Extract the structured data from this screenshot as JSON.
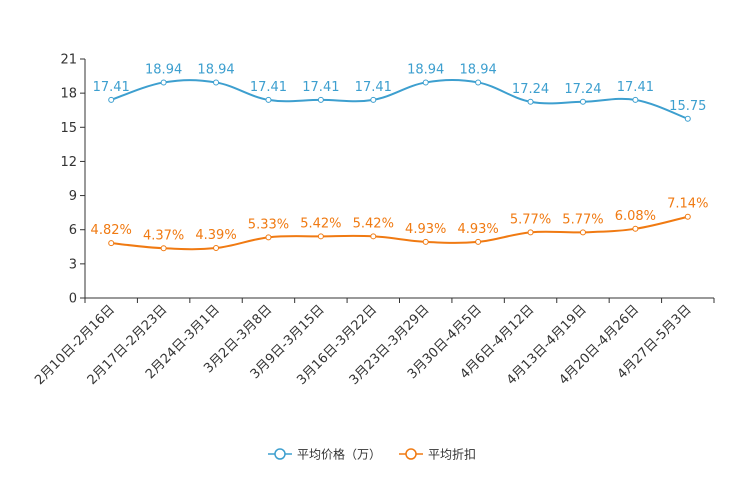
{
  "chart_data": {
    "type": "line",
    "title": "",
    "xlabel": "",
    "ylabel": "",
    "ylim": [
      0,
      21
    ],
    "yticks": [
      0,
      3,
      6,
      9,
      12,
      15,
      18,
      21
    ],
    "grid": false,
    "legend_position": "bottom-center",
    "categories": [
      "2月10日-2月16日",
      "2月17日-2月23日",
      "2月24日-3月1日",
      "3月2日-3月8日",
      "3月9日-3月15日",
      "3月16日-3月22日",
      "3月23日-3月29日",
      "3月30日-4月5日",
      "4月6日-4月12日",
      "4月13日-4月19日",
      "4月20日-4月26日",
      "4月27日-5月3日"
    ],
    "series": [
      {
        "name": "平均价格（万）",
        "color": "#3d9fcf",
        "values": [
          17.41,
          18.94,
          18.94,
          17.41,
          17.41,
          17.41,
          18.94,
          18.94,
          17.24,
          17.24,
          17.41,
          15.75
        ],
        "labels": [
          "17.41",
          "18.94",
          "18.94",
          "17.41",
          "17.41",
          "17.41",
          "18.94",
          "18.94",
          "17.24",
          "17.24",
          "17.41",
          "15.75"
        ]
      },
      {
        "name": "平均折扣",
        "color": "#f07a12",
        "values": [
          4.82,
          4.37,
          4.39,
          5.33,
          5.42,
          5.42,
          4.93,
          4.93,
          5.77,
          5.77,
          6.08,
          7.14
        ],
        "labels": [
          "4.82%",
          "4.37%",
          "4.39%",
          "5.33%",
          "5.42%",
          "5.42%",
          "4.93%",
          "4.93%",
          "5.77%",
          "5.77%",
          "6.08%",
          "7.14%"
        ]
      }
    ]
  }
}
